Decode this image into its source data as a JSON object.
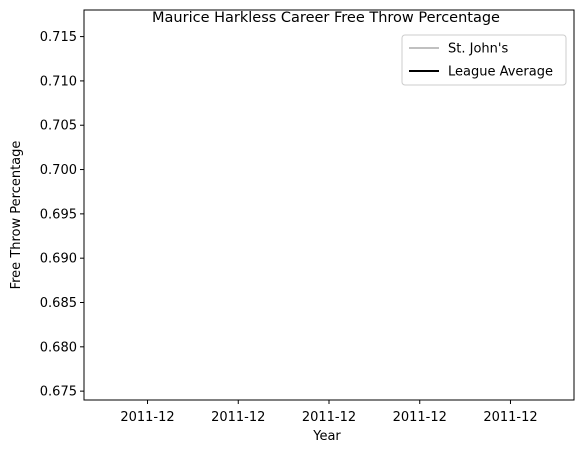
{
  "chart_data": {
    "type": "line",
    "title": "Maurice Harkless Career Free Throw Percentage",
    "xlabel": "Year",
    "ylabel": "Free Throw Percentage",
    "x_ticks": [
      "2011-12",
      "2011-12",
      "2011-12",
      "2011-12",
      "2011-12"
    ],
    "y_ticks": [
      "0.675",
      "0.680",
      "0.685",
      "0.690",
      "0.695",
      "0.700",
      "0.705",
      "0.710",
      "0.715"
    ],
    "ylim": [
      0.674,
      0.718
    ],
    "grid": false,
    "legend_position": "top-right",
    "series": [
      {
        "name": "St. John's",
        "color": "#c0c0c0",
        "values": []
      },
      {
        "name": "League Average",
        "color": "#000000",
        "values": []
      }
    ]
  }
}
